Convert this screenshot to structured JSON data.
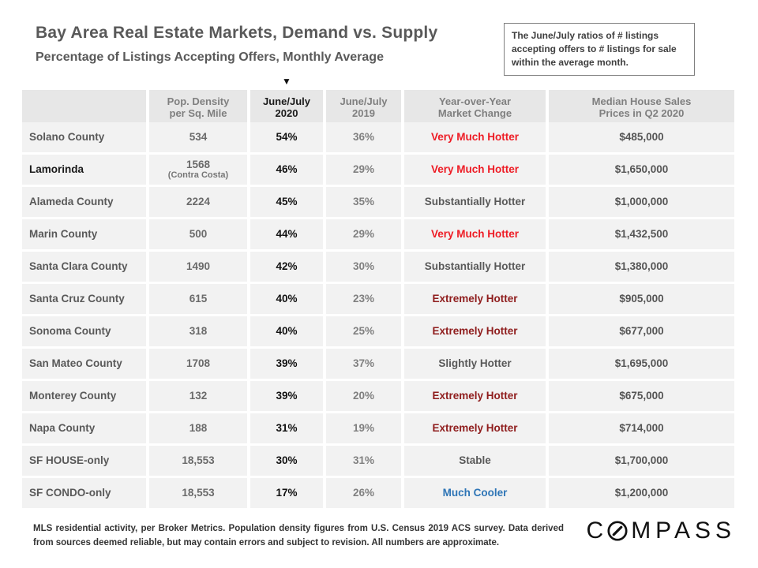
{
  "page": {
    "title": "Bay Area Real Estate Markets, Demand vs. Supply",
    "subtitle": "Percentage of Listings Accepting Offers, Monthly Average",
    "note_box_text": "The June/July ratios of # listings accepting offers to # listings for sale within the average month.",
    "column_marker": "▼"
  },
  "chart_data": {
    "type": "table",
    "title": "Bay Area Real Estate Markets, Demand vs. Supply",
    "subtitle": "Percentage of Listings Accepting Offers, Monthly Average",
    "highlighted_column": "June/July 2020",
    "columns": [
      {
        "key": "market",
        "label": "",
        "highlight": false
      },
      {
        "key": "pop-density",
        "label": "Pop. Density\nper Sq. Mile",
        "highlight": false
      },
      {
        "key": "june-july-2020",
        "label": "June/July\n2020",
        "highlight": true
      },
      {
        "key": "june-july-2019",
        "label": "June/July\n2019",
        "highlight": false
      },
      {
        "key": "yoy-market-change",
        "label": "Year-over-Year\nMarket Change",
        "highlight": false
      },
      {
        "key": "median-price",
        "label": "Median House Sales\nPrices in Q2 2020",
        "highlight": false
      }
    ],
    "rows": [
      {
        "market": "Solano County",
        "pop_density": "534",
        "pop_density_note": "",
        "jun_jul_2020": "54%",
        "jun_jul_2019": "36%",
        "market_change": "Very Much Hotter",
        "change_style": "bright-red",
        "median_price": "$485,000",
        "emphasized": false
      },
      {
        "market": "Lamorinda",
        "pop_density": "1568",
        "pop_density_note": "(Contra Costa)",
        "jun_jul_2020": "46%",
        "jun_jul_2019": "29%",
        "market_change": "Very Much Hotter",
        "change_style": "bright-red",
        "median_price": "$1,650,000",
        "emphasized": true
      },
      {
        "market": "Alameda County",
        "pop_density": "2224",
        "pop_density_note": "",
        "jun_jul_2020": "45%",
        "jun_jul_2019": "35%",
        "market_change": "Substantially Hotter",
        "change_style": "neutral",
        "median_price": "$1,000,000",
        "emphasized": false
      },
      {
        "market": "Marin County",
        "pop_density": "500",
        "pop_density_note": "",
        "jun_jul_2020": "44%",
        "jun_jul_2019": "29%",
        "market_change": "Very Much Hotter",
        "change_style": "bright-red",
        "median_price": "$1,432,500",
        "emphasized": false
      },
      {
        "market": "Santa Clara County",
        "pop_density": "1490",
        "pop_density_note": "",
        "jun_jul_2020": "42%",
        "jun_jul_2019": "30%",
        "market_change": "Substantially Hotter",
        "change_style": "neutral",
        "median_price": "$1,380,000",
        "emphasized": false
      },
      {
        "market": "Santa Cruz County",
        "pop_density": "615",
        "pop_density_note": "",
        "jun_jul_2020": "40%",
        "jun_jul_2019": "23%",
        "market_change": "Extremely Hotter",
        "change_style": "dark-red",
        "median_price": "$905,000",
        "emphasized": false
      },
      {
        "market": "Sonoma County",
        "pop_density": "318",
        "pop_density_note": "",
        "jun_jul_2020": "40%",
        "jun_jul_2019": "25%",
        "market_change": "Extremely Hotter",
        "change_style": "dark-red",
        "median_price": "$677,000",
        "emphasized": false
      },
      {
        "market": "San Mateo County",
        "pop_density": "1708",
        "pop_density_note": "",
        "jun_jul_2020": "39%",
        "jun_jul_2019": "37%",
        "market_change": "Slightly Hotter",
        "change_style": "neutral",
        "median_price": "$1,695,000",
        "emphasized": false
      },
      {
        "market": "Monterey County",
        "pop_density": "132",
        "pop_density_note": "",
        "jun_jul_2020": "39%",
        "jun_jul_2019": "20%",
        "market_change": "Extremely Hotter",
        "change_style": "dark-red",
        "median_price": "$675,000",
        "emphasized": false
      },
      {
        "market": "Napa County",
        "pop_density": "188",
        "pop_density_note": "",
        "jun_jul_2020": "31%",
        "jun_jul_2019": "19%",
        "market_change": "Extremely Hotter",
        "change_style": "dark-red",
        "median_price": "$714,000",
        "emphasized": false
      },
      {
        "market": "SF HOUSE-only",
        "pop_density": "18,553",
        "pop_density_note": "",
        "jun_jul_2020": "30%",
        "jun_jul_2019": "31%",
        "market_change": "Stable",
        "change_style": "neutral",
        "median_price": "$1,700,000",
        "emphasized": false
      },
      {
        "market": "SF CONDO-only",
        "pop_density": "18,553",
        "pop_density_note": "",
        "jun_jul_2020": "17%",
        "jun_jul_2019": "26%",
        "market_change": "Much Cooler",
        "change_style": "blue",
        "median_price": "$1,200,000",
        "emphasized": false
      }
    ]
  },
  "styles": {
    "colors": {
      "bright-red": "#ee1c25",
      "dark-red": "#8f1d1d",
      "neutral": "#595959",
      "blue": "#2e75b6",
      "header-bg": "#e7e7e7",
      "row-bg": "#f2f2f2",
      "title-gray": "#595959"
    }
  },
  "footer": {
    "disclaimer": "MLS residential activity, per Broker Metrics. Population density figures from U.S. Census 2019 ACS survey. Data derived from sources deemed reliable, but may contain errors and subject to revision.  All numbers are approximate.",
    "logo": {
      "text": "COMPASS",
      "prefix": "C",
      "suffix": "MPASS"
    }
  }
}
